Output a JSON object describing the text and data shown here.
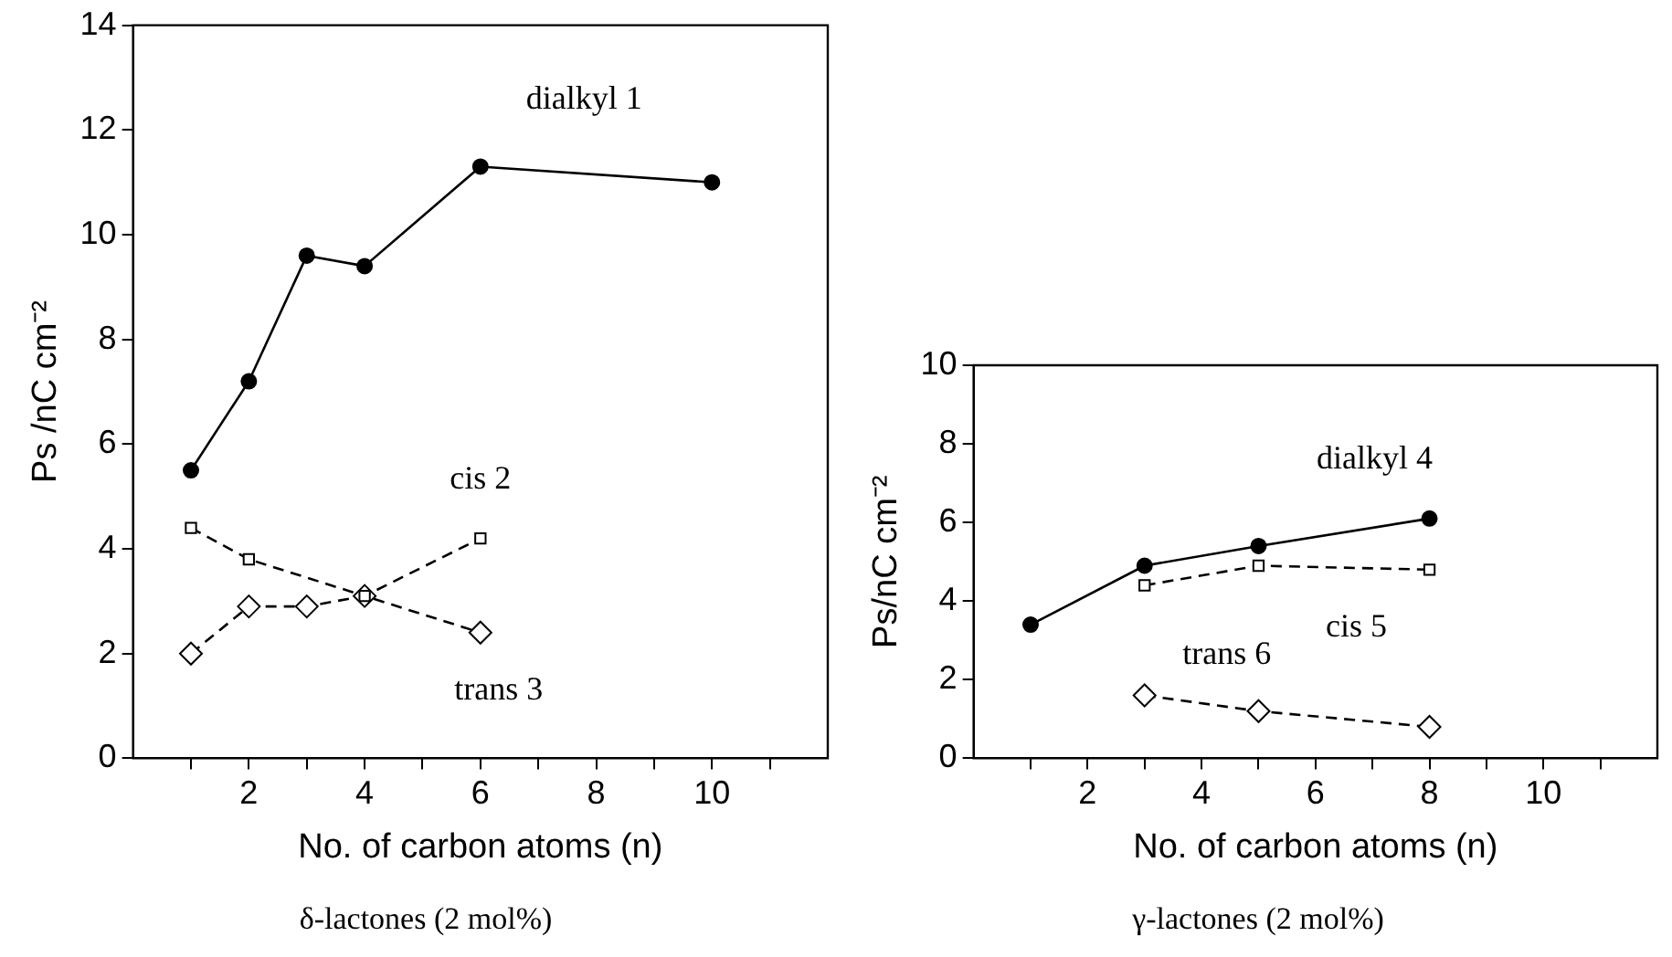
{
  "chart_data": [
    {
      "type": "line",
      "title": "δ-lactones (2 mol%)",
      "xlabel": "No. of carbon atoms (n)",
      "ylabel": "Ps /nC cm⁻²",
      "xlim": [
        0,
        12
      ],
      "xticks": [
        {
          "value": 1,
          "label": null
        },
        2,
        {
          "value": 3,
          "label": null
        },
        4,
        {
          "value": 5,
          "label": null
        },
        6,
        {
          "value": 7,
          "label": null
        },
        8,
        {
          "value": 9,
          "label": null
        },
        10,
        {
          "value": 11,
          "label": null
        }
      ],
      "ylim": [
        0,
        14
      ],
      "yticks": [
        0,
        2,
        4,
        6,
        8,
        10,
        12,
        14
      ],
      "grid": false,
      "legend": false,
      "series": [
        {
          "name": "dialkyl 1",
          "color": "#000000",
          "marker": "circle",
          "line_style": "solid",
          "x": [
            1,
            2,
            3,
            4,
            6,
            10
          ],
          "values": [
            5.5,
            7.2,
            9.6,
            9.4,
            11.3,
            11.0
          ]
        },
        {
          "name": "cis 2",
          "color": "#000000",
          "marker": "square",
          "line_style": "dashed",
          "x": [
            1,
            2,
            4,
            6
          ],
          "values": [
            4.4,
            3.8,
            3.1,
            4.2
          ]
        },
        {
          "name": "trans 3",
          "color": "#000000",
          "marker": "diamond",
          "line_style": "dashed",
          "x": [
            1,
            2,
            3,
            4,
            6
          ],
          "values": [
            2.0,
            2.9,
            2.9,
            3.1,
            2.4
          ]
        }
      ]
    },
    {
      "type": "line",
      "title": "γ-lactones (2 mol%)",
      "xlabel": "No. of carbon atoms (n)",
      "ylabel": "Ps/nC cm⁻²",
      "xlim": [
        0,
        12
      ],
      "xticks": [
        {
          "value": 1,
          "label": null
        },
        2,
        {
          "value": 3,
          "label": null
        },
        4,
        {
          "value": 5,
          "label": null
        },
        6,
        {
          "value": 7,
          "label": null
        },
        8,
        {
          "value": 9,
          "label": null
        },
        10,
        {
          "value": 11,
          "label": null
        }
      ],
      "ylim": [
        0,
        10
      ],
      "yticks": [
        0,
        2,
        4,
        6,
        8,
        10
      ],
      "grid": false,
      "legend": false,
      "series": [
        {
          "name": "dialkyl 4",
          "color": "#000000",
          "marker": "circle",
          "line_style": "solid",
          "x": [
            1,
            3,
            5,
            8
          ],
          "values": [
            3.4,
            4.9,
            5.4,
            6.1
          ]
        },
        {
          "name": "cis 5",
          "color": "#000000",
          "marker": "square",
          "line_style": "dashed",
          "x": [
            3,
            5,
            8
          ],
          "values": [
            4.4,
            4.9,
            4.8
          ]
        },
        {
          "name": "trans 6",
          "color": "#000000",
          "marker": "diamond",
          "line_style": "dashed",
          "x": [
            3,
            5,
            8
          ],
          "values": [
            1.6,
            1.2,
            0.8
          ]
        }
      ]
    }
  ]
}
